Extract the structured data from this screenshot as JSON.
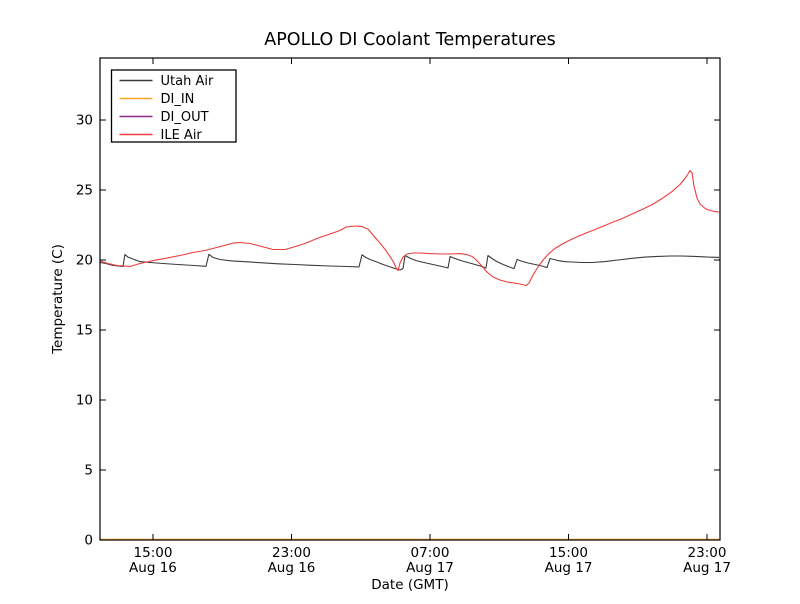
{
  "title": "APOLLO DI Coolant Temperatures",
  "axes": {
    "xlabel": "Date (GMT)",
    "ylabel": "Temperature (C)"
  },
  "colors": {
    "frame": "#000000",
    "utah_air": "#3b3b3b",
    "di_in": "#ffa620",
    "di_out": "#8a2b8a",
    "ile_air": "#ee3b3b",
    "background": "#ffffff"
  },
  "chart_data": {
    "type": "line",
    "title": "APOLLO DI Coolant Temperatures",
    "xlabel": "Date (GMT)",
    "ylabel": "Temperature (C)",
    "x_unit": "hours since Aug 16 00:00 GMT",
    "xlim": [
      11.94,
      47.75
    ],
    "ylim": [
      0,
      34.43
    ],
    "grid": false,
    "legend_position": "upper left",
    "yticks": [
      0,
      5,
      10,
      15,
      20,
      25,
      30
    ],
    "xticks": [
      {
        "t": 15,
        "time": "15:00",
        "date": "Aug 16"
      },
      {
        "t": 23,
        "time": "23:00",
        "date": "Aug 16"
      },
      {
        "t": 31,
        "time": "07:00",
        "date": "Aug 17"
      },
      {
        "t": 39,
        "time": "15:00",
        "date": "Aug 17"
      },
      {
        "t": 47,
        "time": "23:00",
        "date": "Aug 17"
      }
    ],
    "series": [
      {
        "name": "Utah Air",
        "color": "#3b3b3b",
        "points": [
          [
            11.94,
            19.82
          ],
          [
            12.28,
            19.75
          ],
          [
            12.63,
            19.64
          ],
          [
            12.98,
            19.57
          ],
          [
            13.27,
            19.54
          ],
          [
            13.38,
            20.39
          ],
          [
            13.56,
            20.21
          ],
          [
            13.84,
            20.07
          ],
          [
            14.25,
            19.89
          ],
          [
            14.83,
            19.82
          ],
          [
            15.58,
            19.75
          ],
          [
            16.44,
            19.68
          ],
          [
            17.37,
            19.61
          ],
          [
            18.06,
            19.55
          ],
          [
            18.23,
            20.41
          ],
          [
            18.47,
            20.18
          ],
          [
            18.87,
            20.04
          ],
          [
            19.56,
            19.94
          ],
          [
            20.43,
            19.87
          ],
          [
            21.3,
            19.8
          ],
          [
            22.22,
            19.73
          ],
          [
            23.2,
            19.68
          ],
          [
            24.18,
            19.62
          ],
          [
            25.22,
            19.57
          ],
          [
            26.21,
            19.54
          ],
          [
            26.9,
            19.51
          ],
          [
            27.07,
            20.37
          ],
          [
            27.3,
            20.18
          ],
          [
            27.59,
            20.01
          ],
          [
            27.94,
            19.86
          ],
          [
            28.29,
            19.68
          ],
          [
            28.63,
            19.54
          ],
          [
            28.98,
            19.39
          ],
          [
            29.27,
            19.29
          ],
          [
            29.44,
            19.39
          ],
          [
            29.56,
            20.32
          ],
          [
            29.84,
            20.14
          ],
          [
            30.19,
            19.96
          ],
          [
            30.65,
            19.82
          ],
          [
            31.17,
            19.68
          ],
          [
            31.69,
            19.54
          ],
          [
            32.04,
            19.43
          ],
          [
            32.16,
            20.25
          ],
          [
            32.44,
            20.11
          ],
          [
            32.79,
            19.96
          ],
          [
            33.19,
            19.82
          ],
          [
            33.6,
            19.68
          ],
          [
            34.0,
            19.54
          ],
          [
            34.23,
            19.43
          ],
          [
            34.35,
            20.32
          ],
          [
            34.58,
            20.11
          ],
          [
            34.87,
            19.89
          ],
          [
            35.22,
            19.68
          ],
          [
            35.51,
            19.54
          ],
          [
            35.85,
            19.39
          ],
          [
            36.03,
            20.04
          ],
          [
            36.26,
            19.93
          ],
          [
            36.66,
            19.79
          ],
          [
            37.07,
            19.68
          ],
          [
            37.47,
            19.57
          ],
          [
            37.76,
            19.46
          ],
          [
            37.93,
            20.11
          ],
          [
            38.16,
            20.04
          ],
          [
            38.4,
            19.96
          ],
          [
            38.74,
            19.89
          ],
          [
            39.2,
            19.86
          ],
          [
            39.78,
            19.82
          ],
          [
            40.36,
            19.82
          ],
          [
            41.11,
            19.89
          ],
          [
            41.86,
            20.0
          ],
          [
            42.67,
            20.12
          ],
          [
            43.42,
            20.21
          ],
          [
            44.17,
            20.26
          ],
          [
            44.86,
            20.29
          ],
          [
            45.56,
            20.29
          ],
          [
            46.31,
            20.26
          ],
          [
            47.06,
            20.21
          ],
          [
            47.7,
            20.19
          ]
        ]
      },
      {
        "name": "DI_IN",
        "color": "#ffa620",
        "points": [
          [
            11.94,
            0.0
          ],
          [
            47.75,
            0.0
          ]
        ]
      },
      {
        "name": "DI_OUT",
        "color": "#8a2b8a",
        "points": [
          [
            11.94,
            0.0
          ],
          [
            47.75,
            0.0
          ]
        ]
      },
      {
        "name": "ILE Air",
        "color": "#ee3b3b",
        "points": [
          [
            11.94,
            19.93
          ],
          [
            12.4,
            19.75
          ],
          [
            12.92,
            19.61
          ],
          [
            13.67,
            19.54
          ],
          [
            14.25,
            19.75
          ],
          [
            15.0,
            19.96
          ],
          [
            15.81,
            20.14
          ],
          [
            16.56,
            20.32
          ],
          [
            17.31,
            20.54
          ],
          [
            18.0,
            20.68
          ],
          [
            18.87,
            20.96
          ],
          [
            19.62,
            21.21
          ],
          [
            20.03,
            21.25
          ],
          [
            20.6,
            21.18
          ],
          [
            21.3,
            20.96
          ],
          [
            21.93,
            20.75
          ],
          [
            22.63,
            20.75
          ],
          [
            23.2,
            20.96
          ],
          [
            23.78,
            21.18
          ],
          [
            24.47,
            21.54
          ],
          [
            25.22,
            21.86
          ],
          [
            25.8,
            22.11
          ],
          [
            26.15,
            22.36
          ],
          [
            26.67,
            22.43
          ],
          [
            27.07,
            22.39
          ],
          [
            27.42,
            22.21
          ],
          [
            27.71,
            21.79
          ],
          [
            28.11,
            21.21
          ],
          [
            28.46,
            20.68
          ],
          [
            28.75,
            20.14
          ],
          [
            28.92,
            19.79
          ],
          [
            29.04,
            19.43
          ],
          [
            29.15,
            19.25
          ],
          [
            29.27,
            19.79
          ],
          [
            29.44,
            20.21
          ],
          [
            29.67,
            20.43
          ],
          [
            30.02,
            20.5
          ],
          [
            30.42,
            20.5
          ],
          [
            31.0,
            20.46
          ],
          [
            31.58,
            20.43
          ],
          [
            32.16,
            20.43
          ],
          [
            32.73,
            20.46
          ],
          [
            33.14,
            20.39
          ],
          [
            33.43,
            20.25
          ],
          [
            33.71,
            19.96
          ],
          [
            34.0,
            19.57
          ],
          [
            34.29,
            19.14
          ],
          [
            34.64,
            18.79
          ],
          [
            35.04,
            18.57
          ],
          [
            35.45,
            18.43
          ],
          [
            35.85,
            18.36
          ],
          [
            36.2,
            18.29
          ],
          [
            36.55,
            18.18
          ],
          [
            36.72,
            18.36
          ],
          [
            36.95,
            18.93
          ],
          [
            37.24,
            19.5
          ],
          [
            37.53,
            20.0
          ],
          [
            37.87,
            20.46
          ],
          [
            38.22,
            20.82
          ],
          [
            38.63,
            21.14
          ],
          [
            39.09,
            21.43
          ],
          [
            39.66,
            21.75
          ],
          [
            40.24,
            22.04
          ],
          [
            40.82,
            22.32
          ],
          [
            41.51,
            22.68
          ],
          [
            42.09,
            22.96
          ],
          [
            42.67,
            23.29
          ],
          [
            43.25,
            23.61
          ],
          [
            43.83,
            23.96
          ],
          [
            44.4,
            24.39
          ],
          [
            44.98,
            24.89
          ],
          [
            45.44,
            25.39
          ],
          [
            45.79,
            25.93
          ],
          [
            46.02,
            26.39
          ],
          [
            46.14,
            26.21
          ],
          [
            46.25,
            25.29
          ],
          [
            46.42,
            24.43
          ],
          [
            46.6,
            24.0
          ],
          [
            46.89,
            23.68
          ],
          [
            47.18,
            23.54
          ],
          [
            47.46,
            23.46
          ],
          [
            47.7,
            23.43
          ]
        ]
      }
    ]
  },
  "legend": {
    "entries": [
      {
        "label": "Utah Air",
        "color": "#3b3b3b"
      },
      {
        "label": "DI_IN",
        "color": "#ffa620"
      },
      {
        "label": "DI_OUT",
        "color": "#8a2b8a"
      },
      {
        "label": "ILE Air",
        "color": "#ee3b3b"
      }
    ]
  }
}
